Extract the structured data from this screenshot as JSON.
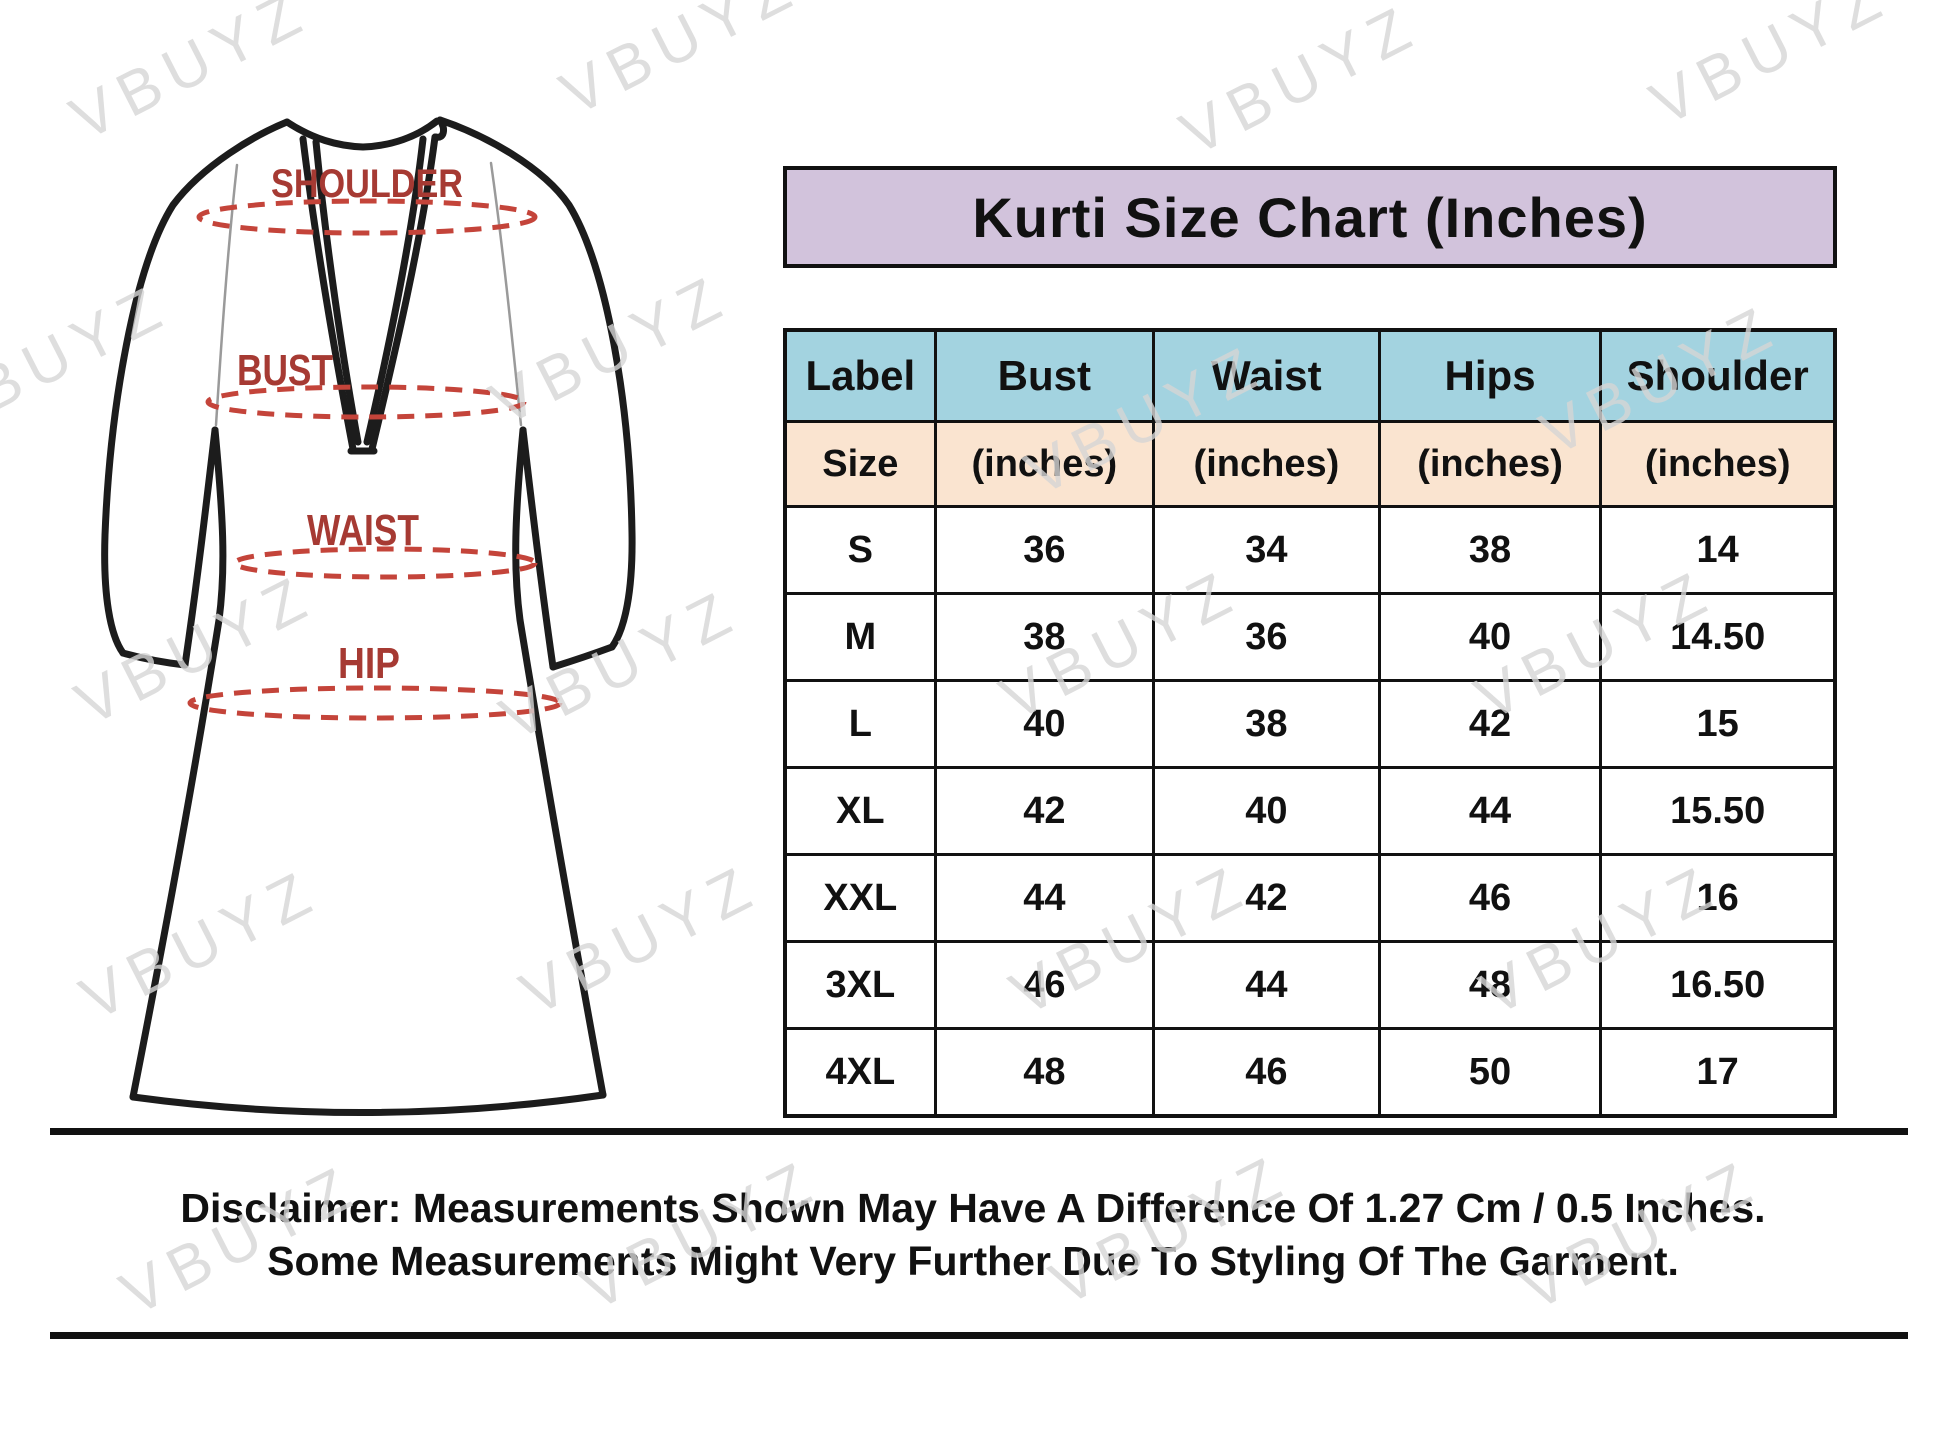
{
  "chart_data": {
    "type": "table",
    "title": "Kurti Size Chart (Inches)",
    "columns": [
      "Label",
      "Bust",
      "Waist",
      "Hips",
      "Shoulder"
    ],
    "units_row": [
      "Size",
      "(inches)",
      "(inches)",
      "(inches)",
      "(inches)"
    ],
    "rows": [
      [
        "S",
        "36",
        "34",
        "38",
        "14"
      ],
      [
        "M",
        "38",
        "36",
        "40",
        "14.50"
      ],
      [
        "L",
        "40",
        "38",
        "42",
        "15"
      ],
      [
        "XL",
        "42",
        "40",
        "44",
        "15.50"
      ],
      [
        "XXL",
        "44",
        "42",
        "46",
        "16"
      ],
      [
        "3XL",
        "46",
        "44",
        "48",
        "16.50"
      ],
      [
        "4XL",
        "48",
        "46",
        "50",
        "17"
      ]
    ]
  },
  "garment_diagram": {
    "shoulder_label": "SHOULDER",
    "bust_label": "BUST",
    "waist_label": "WAIST",
    "hip_label": "HIP"
  },
  "disclaimer_line1": "Disclaimer: Measurements Shown May Have A Difference Of 1.27 Cm / 0.5 Inches.",
  "disclaimer_line2": "Some Measurements Might Very Further Due To Styling Of The Garment.",
  "watermark_text": "VBUYZ",
  "colors": {
    "title_bg": "#d2c3dc",
    "header_bg": "#a3d3e0",
    "units_bg": "#fae4d0",
    "border": "#111111",
    "measure_label_red": "#a63a33",
    "dash_red": "#c4443a",
    "watermark_gray": "#d6d6d6"
  }
}
